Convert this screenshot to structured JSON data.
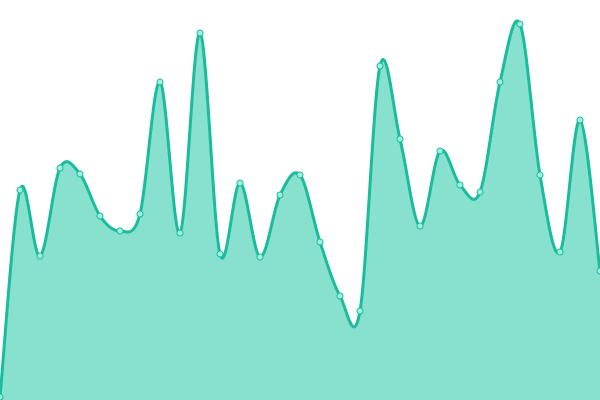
{
  "chart_data": {
    "type": "area",
    "title": "",
    "xlabel": "",
    "ylabel": "",
    "x": [
      0,
      1,
      2,
      3,
      4,
      5,
      6,
      7,
      8,
      9,
      10,
      11,
      12,
      13,
      14,
      15,
      16,
      17,
      18,
      19,
      20,
      21,
      22,
      23,
      24,
      25,
      26,
      27,
      28,
      29,
      30
    ],
    "values": [
      3,
      210,
      144,
      232,
      226,
      184,
      169,
      186,
      318,
      167,
      367,
      146,
      217,
      143,
      205,
      225,
      158,
      104,
      89,
      334,
      261,
      174,
      249,
      215,
      208,
      318,
      376,
      225,
      148,
      280,
      129
    ],
    "ylim": [
      0,
      400
    ],
    "grid": false,
    "axes_visible": false,
    "smooth": true,
    "colors": {
      "line": "#1abc9c",
      "fill": "#88e0cf",
      "point_fill": "#9ff0df",
      "point_stroke": "#1abc9c"
    }
  }
}
